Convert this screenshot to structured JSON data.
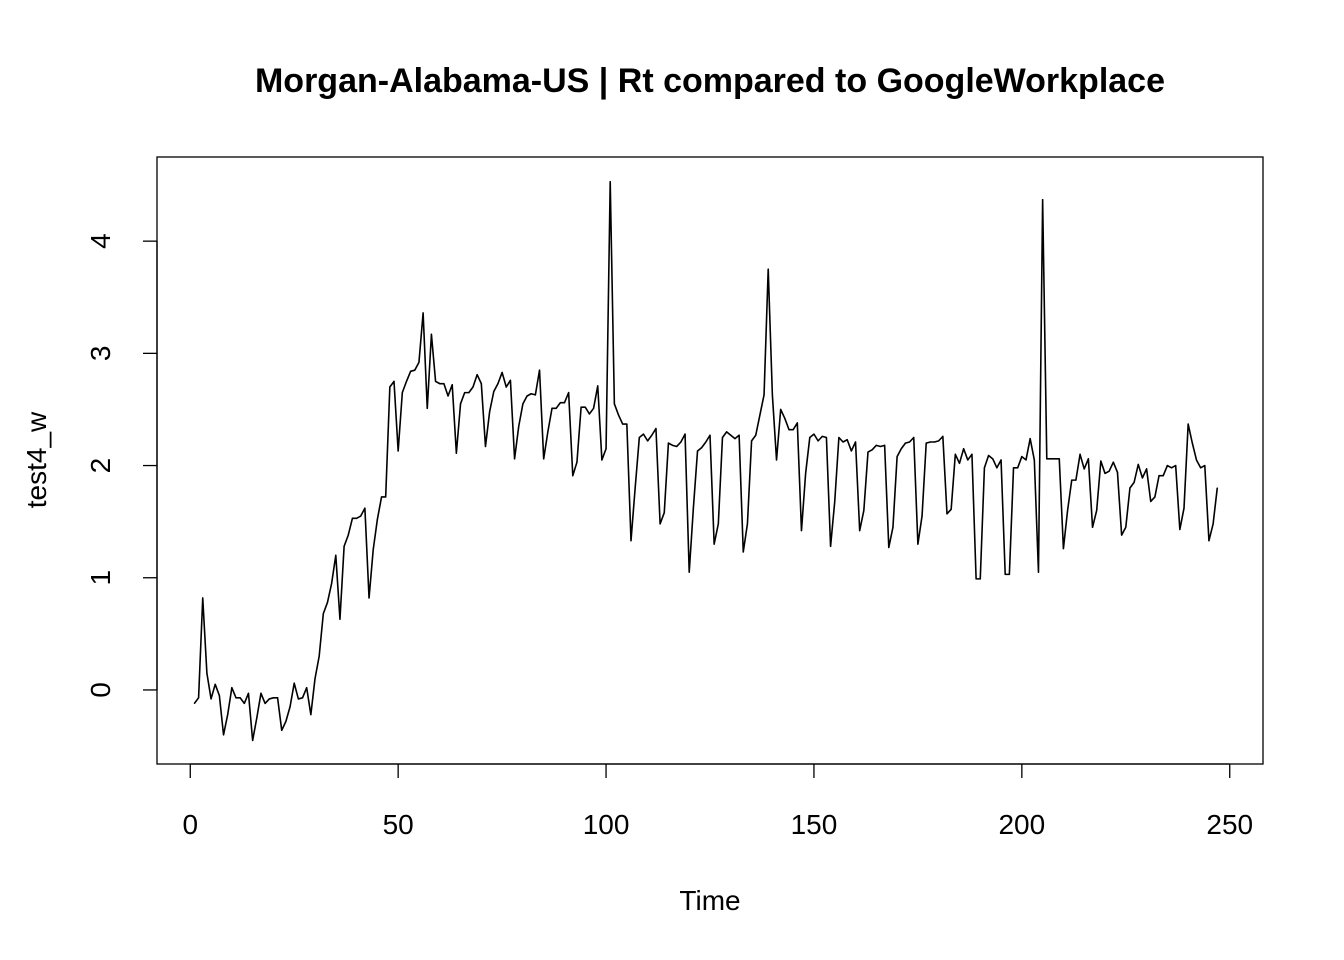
{
  "chart_data": {
    "type": "line",
    "title": "Morgan-Alabama-US | Rt compared to GoogleWorkplace",
    "xlabel": "Time",
    "ylabel": "test4_w",
    "xlim": [
      -8,
      258
    ],
    "ylim": [
      -0.66,
      4.75
    ],
    "x_ticks": [
      0,
      50,
      100,
      150,
      200,
      250
    ],
    "y_ticks": [
      0,
      1,
      2,
      3,
      4
    ],
    "grid": false,
    "legend": "none",
    "line_color": "#000000",
    "series": [
      {
        "x_start": 1,
        "values": [
          -0.12,
          -0.07,
          0.82,
          0.15,
          -0.08,
          0.05,
          -0.05,
          -0.4,
          -0.22,
          0.02,
          -0.07,
          -0.07,
          -0.12,
          -0.03,
          -0.45,
          -0.25,
          -0.03,
          -0.12,
          -0.08,
          -0.07,
          -0.07,
          -0.36,
          -0.28,
          -0.15,
          0.06,
          -0.08,
          -0.07,
          0.02,
          -0.22,
          0.1,
          0.3,
          0.68,
          0.78,
          0.95,
          1.2,
          0.63,
          1.28,
          1.38,
          1.53,
          1.53,
          1.55,
          1.62,
          0.82,
          1.25,
          1.52,
          1.72,
          1.72,
          2.7,
          2.75,
          2.13,
          2.65,
          2.75,
          2.84,
          2.85,
          2.92,
          3.36,
          2.51,
          3.17,
          2.75,
          2.73,
          2.73,
          2.62,
          2.72,
          2.11,
          2.55,
          2.65,
          2.65,
          2.7,
          2.81,
          2.73,
          2.17,
          2.48,
          2.66,
          2.73,
          2.83,
          2.7,
          2.76,
          2.06,
          2.35,
          2.55,
          2.62,
          2.64,
          2.63,
          2.85,
          2.06,
          2.3,
          2.51,
          2.51,
          2.56,
          2.56,
          2.65,
          1.91,
          2.03,
          2.52,
          2.52,
          2.46,
          2.51,
          2.71,
          2.05,
          2.15,
          4.53,
          2.55,
          2.45,
          2.37,
          2.37,
          1.33,
          1.8,
          2.25,
          2.28,
          2.22,
          2.27,
          2.33,
          1.48,
          1.58,
          2.2,
          2.18,
          2.17,
          2.21,
          2.28,
          1.05,
          1.62,
          2.13,
          2.16,
          2.21,
          2.27,
          1.3,
          1.48,
          2.25,
          2.3,
          2.27,
          2.24,
          2.27,
          1.23,
          1.48,
          2.22,
          2.27,
          2.45,
          2.63,
          3.75,
          2.63,
          2.05,
          2.5,
          2.42,
          2.32,
          2.32,
          2.38,
          1.42,
          1.93,
          2.25,
          2.28,
          2.22,
          2.26,
          2.25,
          1.28,
          1.68,
          2.25,
          2.21,
          2.23,
          2.13,
          2.21,
          1.42,
          1.6,
          2.12,
          2.14,
          2.18,
          2.17,
          2.18,
          1.27,
          1.45,
          2.08,
          2.15,
          2.2,
          2.21,
          2.25,
          1.3,
          1.55,
          2.2,
          2.21,
          2.21,
          2.22,
          2.26,
          1.57,
          1.61,
          2.1,
          2.02,
          2.15,
          2.05,
          2.1,
          0.99,
          0.99,
          1.98,
          2.09,
          2.06,
          1.98,
          2.05,
          1.03,
          1.03,
          1.98,
          1.98,
          2.08,
          2.05,
          2.24,
          2.05,
          1.05,
          4.37,
          2.06,
          2.06,
          2.06,
          2.06,
          1.26,
          1.6,
          1.87,
          1.87,
          2.1,
          1.97,
          2.06,
          1.45,
          1.6,
          2.04,
          1.93,
          1.95,
          2.03,
          1.94,
          1.38,
          1.45,
          1.8,
          1.85,
          2.01,
          1.89,
          1.97,
          1.68,
          1.72,
          1.91,
          1.91,
          2.0,
          1.98,
          2.0,
          1.43,
          1.62,
          2.37,
          2.2,
          2.05,
          1.98,
          2.0,
          1.33,
          1.48,
          1.8
        ]
      }
    ]
  }
}
